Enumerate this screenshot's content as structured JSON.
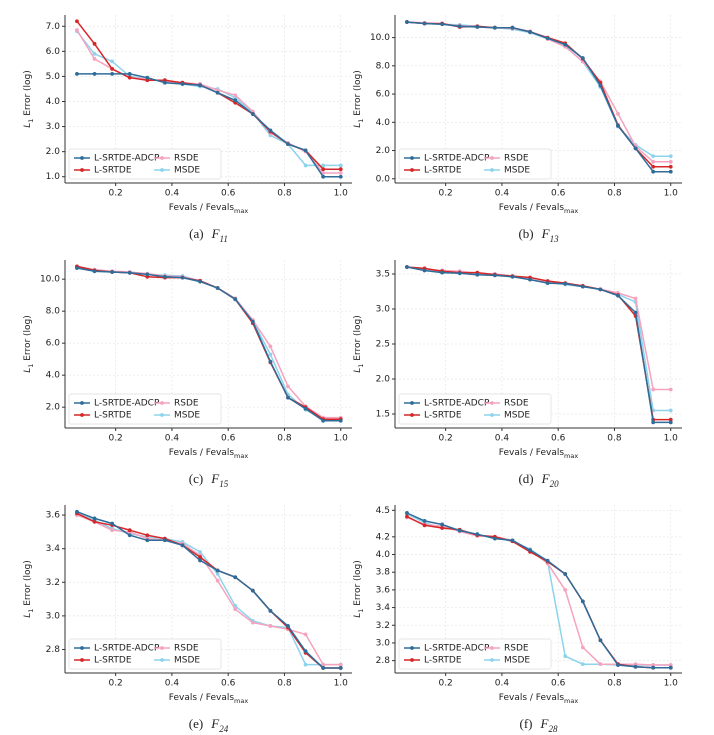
{
  "chart_data": [
    {
      "type": "line",
      "caption": {
        "label": "(a)",
        "name": "F",
        "sub": "11"
      },
      "xlabel": {
        "text": "Fevals / Fevals",
        "sub": "max"
      },
      "ylabel": {
        "text": "L",
        "sub": "1",
        "rest": " Error (log)"
      },
      "x": [
        0.0625,
        0.125,
        0.1875,
        0.25,
        0.3125,
        0.375,
        0.4375,
        0.5,
        0.5625,
        0.625,
        0.6875,
        0.75,
        0.8125,
        0.875,
        0.9375,
        1.0
      ],
      "xlim": [
        0.02,
        1.04
      ],
      "xticks": [
        0.2,
        0.4,
        0.6,
        0.8,
        {
          "value": 1,
          "label": "1.0"
        }
      ],
      "ylim": [
        0.75,
        7.45
      ],
      "yticks": [
        {
          "value": 1,
          "label": "1.0"
        },
        {
          "value": 2,
          "label": "2.0"
        },
        {
          "value": 3,
          "label": "3.0"
        },
        {
          "value": 4,
          "label": "4.0"
        },
        {
          "value": 5,
          "label": "5.0"
        },
        {
          "value": 6,
          "label": "6.0"
        },
        {
          "value": 7,
          "label": "7.0"
        }
      ],
      "grid": true,
      "legend": "lower left",
      "series": [
        {
          "name": "L-SRTDE-ADCP",
          "color": "#2e6d9a",
          "values": [
            5.1,
            5.1,
            5.1,
            5.1,
            4.95,
            4.75,
            4.7,
            4.65,
            4.35,
            4.05,
            3.5,
            2.85,
            2.3,
            2.05,
            1.0,
            1.0
          ]
        },
        {
          "name": "L-SRTDE",
          "color": "#d62728",
          "values": [
            7.2,
            6.3,
            5.3,
            4.95,
            4.85,
            4.85,
            4.75,
            4.65,
            4.35,
            3.95,
            3.5,
            2.8,
            2.3,
            2.05,
            1.3,
            1.3
          ]
        },
        {
          "name": "RSDE",
          "color": "#f5a3bf",
          "values": [
            6.85,
            5.7,
            5.3,
            4.95,
            4.9,
            4.8,
            4.75,
            4.7,
            4.45,
            4.25,
            3.6,
            2.75,
            2.35,
            2.0,
            1.15,
            1.15
          ]
        },
        {
          "name": "MSDE",
          "color": "#8dd3ec",
          "values": [
            6.8,
            5.9,
            5.6,
            5.0,
            4.9,
            4.8,
            4.7,
            4.6,
            4.5,
            4.15,
            3.55,
            2.65,
            2.3,
            1.45,
            1.45,
            1.45
          ]
        }
      ]
    },
    {
      "type": "line",
      "caption": {
        "label": "(b)",
        "name": "F",
        "sub": "13"
      },
      "xlabel": {
        "text": "Fevals / Fevals",
        "sub": "max"
      },
      "ylabel": {
        "text": "L",
        "sub": "1",
        "rest": " Error (log)"
      },
      "x": [
        0.0625,
        0.125,
        0.1875,
        0.25,
        0.3125,
        0.375,
        0.4375,
        0.5,
        0.5625,
        0.625,
        0.6875,
        0.75,
        0.8125,
        0.875,
        0.9375,
        1.0
      ],
      "xlim": [
        0.02,
        1.04
      ],
      "xticks": [
        0.2,
        0.4,
        0.6,
        0.8,
        {
          "value": 1,
          "label": "1.0"
        }
      ],
      "ylim": [
        -0.3,
        11.6
      ],
      "yticks": [
        {
          "value": 0,
          "label": "0.0"
        },
        {
          "value": 2,
          "label": "2.0"
        },
        {
          "value": 4,
          "label": "4.0"
        },
        {
          "value": 6,
          "label": "6.0"
        },
        {
          "value": 8,
          "label": "8.0"
        },
        {
          "value": 10,
          "label": "10.0"
        }
      ],
      "grid": true,
      "legend": "lower left",
      "series": [
        {
          "name": "L-SRTDE-ADCP",
          "color": "#2e6d9a",
          "values": [
            11.1,
            11.0,
            10.95,
            10.8,
            10.75,
            10.7,
            10.7,
            10.4,
            9.95,
            9.5,
            8.55,
            6.6,
            3.75,
            2.15,
            0.5,
            0.5
          ]
        },
        {
          "name": "L-SRTDE",
          "color": "#d62728",
          "values": [
            11.1,
            11.0,
            11.0,
            10.75,
            10.8,
            10.7,
            10.7,
            10.4,
            10.0,
            9.6,
            8.5,
            6.8,
            3.8,
            2.15,
            0.85,
            0.85
          ]
        },
        {
          "name": "RSDE",
          "color": "#f5a3bf",
          "values": [
            11.1,
            11.05,
            10.95,
            10.85,
            10.75,
            10.7,
            10.65,
            10.45,
            9.9,
            9.35,
            8.3,
            6.9,
            4.6,
            2.3,
            1.2,
            1.2
          ]
        },
        {
          "name": "MSDE",
          "color": "#8dd3ec",
          "values": [
            11.1,
            11.0,
            10.95,
            10.9,
            10.8,
            10.7,
            10.6,
            10.35,
            9.9,
            9.4,
            8.3,
            6.5,
            3.7,
            2.4,
            1.6,
            1.6
          ]
        }
      ]
    },
    {
      "type": "line",
      "caption": {
        "label": "(c)",
        "name": "F",
        "sub": "15"
      },
      "xlabel": {
        "text": "Fevals / Fevals",
        "sub": "max"
      },
      "ylabel": {
        "text": "L",
        "sub": "1",
        "rest": " Error (log)"
      },
      "x": [
        0.0625,
        0.125,
        0.1875,
        0.25,
        0.3125,
        0.375,
        0.4375,
        0.5,
        0.5625,
        0.625,
        0.6875,
        0.75,
        0.8125,
        0.875,
        0.9375,
        1.0
      ],
      "xlim": [
        0.02,
        1.04
      ],
      "xticks": [
        0.2,
        0.4,
        0.6,
        0.8,
        {
          "value": 1,
          "label": "1.0"
        }
      ],
      "ylim": [
        0.7,
        11.2
      ],
      "yticks": [
        {
          "value": 2,
          "label": "2.0"
        },
        {
          "value": 4,
          "label": "4.0"
        },
        {
          "value": 6,
          "label": "6.0"
        },
        {
          "value": 8,
          "label": "8.0"
        },
        {
          "value": 10,
          "label": "10.0"
        }
      ],
      "grid": true,
      "legend": "lower left",
      "series": [
        {
          "name": "L-SRTDE-ADCP",
          "color": "#2e6d9a",
          "values": [
            10.7,
            10.5,
            10.45,
            10.4,
            10.3,
            10.15,
            10.1,
            9.85,
            9.45,
            8.75,
            7.35,
            4.85,
            2.6,
            1.9,
            1.15,
            1.15
          ]
        },
        {
          "name": "L-SRTDE",
          "color": "#d62728",
          "values": [
            10.8,
            10.55,
            10.45,
            10.4,
            10.15,
            10.1,
            10.1,
            9.9,
            9.45,
            8.75,
            7.25,
            4.8,
            2.6,
            2.0,
            1.25,
            1.25
          ]
        },
        {
          "name": "RSDE",
          "color": "#f5a3bf",
          "values": [
            10.8,
            10.6,
            10.5,
            10.45,
            10.35,
            10.2,
            10.15,
            9.9,
            9.45,
            8.8,
            7.45,
            5.8,
            3.3,
            2.05,
            1.35,
            1.35
          ]
        },
        {
          "name": "MSDE",
          "color": "#8dd3ec",
          "values": [
            10.7,
            10.5,
            10.45,
            10.4,
            10.3,
            10.25,
            10.2,
            9.9,
            9.45,
            8.8,
            7.4,
            5.3,
            2.8,
            1.85,
            1.25,
            1.25
          ]
        }
      ]
    },
    {
      "type": "line",
      "caption": {
        "label": "(d)",
        "name": "F",
        "sub": "20"
      },
      "xlabel": {
        "text": "Fevals / Fevals",
        "sub": "max"
      },
      "ylabel": {
        "text": "L",
        "sub": "1",
        "rest": " Error (log)"
      },
      "x": [
        0.0625,
        0.125,
        0.1875,
        0.25,
        0.3125,
        0.375,
        0.4375,
        0.5,
        0.5625,
        0.625,
        0.6875,
        0.75,
        0.8125,
        0.875,
        0.9375,
        1.0
      ],
      "xlim": [
        0.02,
        1.04
      ],
      "xticks": [
        0.2,
        0.4,
        0.6,
        0.8,
        {
          "value": 1,
          "label": "1.0"
        }
      ],
      "ylim": [
        1.3,
        3.7
      ],
      "yticks": [
        1.5,
        {
          "value": 2,
          "label": "2.0"
        },
        2.5,
        {
          "value": 3,
          "label": "3.0"
        },
        3.5
      ],
      "grid": true,
      "legend": "lower left",
      "series": [
        {
          "name": "L-SRTDE-ADCP",
          "color": "#2e6d9a",
          "values": [
            3.6,
            3.55,
            3.52,
            3.51,
            3.49,
            3.48,
            3.46,
            3.42,
            3.37,
            3.36,
            3.32,
            3.28,
            3.19,
            2.95,
            1.38,
            1.38
          ]
        },
        {
          "name": "L-SRTDE",
          "color": "#d62728",
          "values": [
            3.6,
            3.58,
            3.54,
            3.52,
            3.52,
            3.49,
            3.47,
            3.45,
            3.4,
            3.37,
            3.33,
            3.28,
            3.2,
            2.9,
            1.42,
            1.42
          ]
        },
        {
          "name": "RSDE",
          "color": "#f5a3bf",
          "values": [
            3.6,
            3.57,
            3.55,
            3.54,
            3.51,
            3.5,
            3.47,
            3.42,
            3.38,
            3.36,
            3.33,
            3.28,
            3.23,
            3.15,
            1.85,
            1.85
          ]
        },
        {
          "name": "MSDE",
          "color": "#8dd3ec",
          "values": [
            3.6,
            3.56,
            3.55,
            3.53,
            3.51,
            3.5,
            3.47,
            3.42,
            3.38,
            3.35,
            3.32,
            3.28,
            3.21,
            3.1,
            1.55,
            1.55
          ]
        }
      ]
    },
    {
      "type": "line",
      "caption": {
        "label": "(e)",
        "name": "F",
        "sub": "24"
      },
      "xlabel": {
        "text": "Fevals / Fevals",
        "sub": "max"
      },
      "ylabel": {
        "text": "L",
        "sub": "1",
        "rest": " Error (log)"
      },
      "x": [
        0.0625,
        0.125,
        0.1875,
        0.25,
        0.3125,
        0.375,
        0.4375,
        0.5,
        0.5625,
        0.625,
        0.6875,
        0.75,
        0.8125,
        0.875,
        0.9375,
        1.0
      ],
      "xlim": [
        0.02,
        1.04
      ],
      "xticks": [
        0.2,
        0.4,
        0.6,
        0.8,
        {
          "value": 1,
          "label": "1.0"
        }
      ],
      "ylim": [
        2.66,
        3.66
      ],
      "yticks": [
        2.8,
        {
          "value": 3,
          "label": "3.0"
        },
        3.2,
        3.4,
        3.6
      ],
      "grid": true,
      "legend": "lower left",
      "series": [
        {
          "name": "L-SRTDE-ADCP",
          "color": "#2e6d9a",
          "values": [
            3.62,
            3.58,
            3.55,
            3.48,
            3.45,
            3.45,
            3.42,
            3.33,
            3.27,
            3.23,
            3.15,
            3.03,
            2.94,
            2.79,
            2.69,
            2.69
          ]
        },
        {
          "name": "L-SRTDE",
          "color": "#d62728",
          "values": [
            3.61,
            3.56,
            3.54,
            3.51,
            3.48,
            3.46,
            3.42,
            3.35,
            3.27,
            3.23,
            3.15,
            3.03,
            2.93,
            2.78,
            2.69,
            2.69
          ]
        },
        {
          "name": "RSDE",
          "color": "#f5a3bf",
          "values": [
            3.6,
            3.56,
            3.51,
            3.5,
            3.46,
            3.45,
            3.43,
            3.36,
            3.21,
            3.04,
            2.96,
            2.94,
            2.92,
            2.89,
            2.71,
            2.71
          ]
        },
        {
          "name": "MSDE",
          "color": "#8dd3ec",
          "values": [
            3.61,
            3.57,
            3.52,
            3.49,
            3.47,
            3.46,
            3.44,
            3.38,
            3.25,
            3.06,
            2.97,
            2.94,
            2.93,
            2.71,
            2.71,
            2.71
          ]
        }
      ]
    },
    {
      "type": "line",
      "caption": {
        "label": "(f)",
        "name": "F",
        "sub": "28"
      },
      "xlabel": {
        "text": "Fevals / Fevals",
        "sub": "max"
      },
      "ylabel": {
        "text": "L",
        "sub": "1",
        "rest": " Error (log)"
      },
      "x": [
        0.0625,
        0.125,
        0.1875,
        0.25,
        0.3125,
        0.375,
        0.4375,
        0.5,
        0.5625,
        0.625,
        0.6875,
        0.75,
        0.8125,
        0.875,
        0.9375,
        1.0
      ],
      "xlim": [
        0.02,
        1.04
      ],
      "xticks": [
        0.2,
        0.4,
        0.6,
        0.8,
        {
          "value": 1,
          "label": "1.0"
        }
      ],
      "ylim": [
        2.66,
        4.56
      ],
      "yticks": [
        2.8,
        {
          "value": 3,
          "label": "3.0"
        },
        3.2,
        3.4,
        3.6,
        3.8,
        {
          "value": 4,
          "label": "4.0"
        },
        4.2,
        4.5
      ],
      "grid": true,
      "legend": "lower left",
      "series": [
        {
          "name": "L-SRTDE-ADCP",
          "color": "#2e6d9a",
          "values": [
            4.47,
            4.38,
            4.34,
            4.27,
            4.23,
            4.18,
            4.16,
            4.05,
            3.93,
            3.78,
            3.47,
            3.03,
            2.75,
            2.73,
            2.72,
            2.72
          ]
        },
        {
          "name": "L-SRTDE",
          "color": "#d62728",
          "values": [
            4.43,
            4.33,
            4.3,
            4.28,
            4.22,
            4.2,
            4.15,
            4.03,
            3.92,
            3.78,
            3.47,
            3.03,
            2.76,
            2.73,
            2.72,
            2.72
          ]
        },
        {
          "name": "RSDE",
          "color": "#f5a3bf",
          "values": [
            4.42,
            4.34,
            4.32,
            4.26,
            4.21,
            4.2,
            4.16,
            4.05,
            3.9,
            3.6,
            2.95,
            2.76,
            2.76,
            2.76,
            2.75,
            2.75
          ]
        },
        {
          "name": "MSDE",
          "color": "#8dd3ec",
          "values": [
            4.46,
            4.36,
            4.3,
            4.28,
            4.22,
            4.19,
            4.15,
            4.06,
            3.92,
            2.85,
            2.76,
            2.76,
            2.75,
            2.75,
            2.75,
            2.75
          ]
        }
      ]
    }
  ]
}
